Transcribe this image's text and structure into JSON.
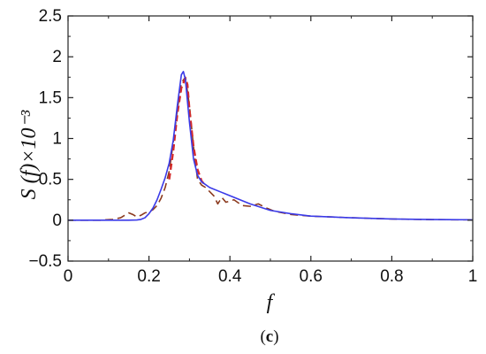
{
  "chart_data": {
    "type": "line",
    "title": "",
    "xlabel": "f",
    "ylabel": "S (f)×10⁻³",
    "caption_open": "(",
    "caption_letter": "c",
    "caption_close": ")",
    "xlim": [
      0,
      1
    ],
    "ylim": [
      -0.5,
      2.5
    ],
    "x_ticks": [
      0,
      0.2,
      0.4,
      0.6,
      0.8,
      1
    ],
    "x_tick_labels": [
      "0",
      "0.2",
      "0.4",
      "0.6",
      "0.8",
      "1"
    ],
    "y_ticks": [
      -0.5,
      0,
      0.5,
      1,
      1.5,
      2,
      2.5
    ],
    "y_tick_labels": [
      "−0.5",
      "0",
      "0.5",
      "1",
      "1.5",
      "2",
      "2.5"
    ],
    "grid": false,
    "legend": "none",
    "series": [
      {
        "style": "solid",
        "color": "#3a3ae8",
        "points": [
          [
            0,
            0
          ],
          [
            0.1,
            0
          ],
          [
            0.15,
            0
          ],
          [
            0.17,
            0.003
          ],
          [
            0.18,
            0.01
          ],
          [
            0.19,
            0.03
          ],
          [
            0.2,
            0.08
          ],
          [
            0.21,
            0.15
          ],
          [
            0.22,
            0.25
          ],
          [
            0.23,
            0.38
          ],
          [
            0.24,
            0.52
          ],
          [
            0.25,
            0.7
          ],
          [
            0.26,
            0.98
          ],
          [
            0.27,
            1.4
          ],
          [
            0.28,
            1.78
          ],
          [
            0.285,
            1.82
          ],
          [
            0.29,
            1.72
          ],
          [
            0.3,
            1.2
          ],
          [
            0.31,
            0.75
          ],
          [
            0.32,
            0.55
          ],
          [
            0.33,
            0.47
          ],
          [
            0.35,
            0.4
          ],
          [
            0.38,
            0.34
          ],
          [
            0.4,
            0.3
          ],
          [
            0.45,
            0.2
          ],
          [
            0.5,
            0.12
          ],
          [
            0.55,
            0.08
          ],
          [
            0.6,
            0.05
          ],
          [
            0.7,
            0.03
          ],
          [
            0.8,
            0.015
          ],
          [
            0.9,
            0.008
          ],
          [
            1.0,
            0.005
          ]
        ]
      },
      {
        "style": "dashed",
        "color": "#d42a2a",
        "points": [
          [
            0.25,
            0.5
          ],
          [
            0.26,
            0.85
          ],
          [
            0.27,
            1.3
          ],
          [
            0.28,
            1.62
          ],
          [
            0.29,
            1.74
          ],
          [
            0.295,
            1.66
          ],
          [
            0.3,
            1.35
          ],
          [
            0.31,
            0.9
          ],
          [
            0.32,
            0.62
          ],
          [
            0.33,
            0.48
          ],
          [
            0.34,
            0.42
          ]
        ]
      },
      {
        "style": "long-dash",
        "color": "#8b3a1e",
        "points": [
          [
            0,
            0
          ],
          [
            0.08,
            0
          ],
          [
            0.11,
            0.01
          ],
          [
            0.13,
            0.03
          ],
          [
            0.14,
            0.06
          ],
          [
            0.15,
            0.09
          ],
          [
            0.16,
            0.07
          ],
          [
            0.17,
            0.04
          ],
          [
            0.18,
            0.06
          ],
          [
            0.19,
            0.09
          ],
          [
            0.2,
            0.1
          ],
          [
            0.21,
            0.13
          ],
          [
            0.22,
            0.18
          ],
          [
            0.23,
            0.27
          ],
          [
            0.24,
            0.4
          ],
          [
            0.25,
            0.6
          ],
          [
            0.26,
            0.95
          ],
          [
            0.27,
            1.35
          ],
          [
            0.28,
            1.68
          ],
          [
            0.29,
            1.75
          ],
          [
            0.3,
            1.4
          ],
          [
            0.31,
            0.9
          ],
          [
            0.32,
            0.5
          ],
          [
            0.33,
            0.43
          ],
          [
            0.34,
            0.4
          ],
          [
            0.36,
            0.3
          ],
          [
            0.37,
            0.2
          ],
          [
            0.38,
            0.28
          ],
          [
            0.39,
            0.22
          ],
          [
            0.41,
            0.25
          ],
          [
            0.43,
            0.18
          ],
          [
            0.45,
            0.17
          ],
          [
            0.47,
            0.2
          ],
          [
            0.49,
            0.15
          ],
          [
            0.51,
            0.11
          ],
          [
            0.55,
            0.07
          ],
          [
            0.6,
            0.05
          ],
          [
            0.7,
            0.03
          ],
          [
            0.8,
            0.015
          ],
          [
            0.9,
            0.007
          ],
          [
            1.0,
            0.005
          ]
        ]
      }
    ]
  }
}
